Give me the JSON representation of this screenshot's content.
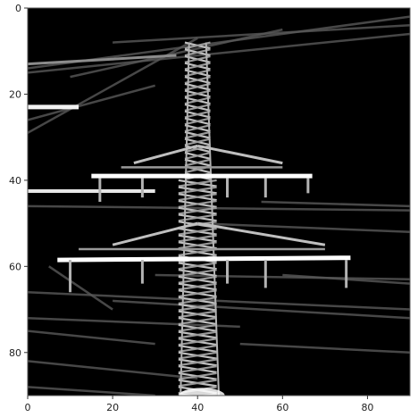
{
  "chart_data": {
    "type": "heatmap",
    "title": "",
    "xlabel": "",
    "ylabel": "",
    "colormap": "gray",
    "xlim": [
      0,
      90
    ],
    "ylim": [
      90,
      0
    ],
    "x_ticks": [
      0,
      20,
      40,
      60,
      80
    ],
    "y_ticks": [
      0,
      20,
      40,
      60,
      80
    ],
    "x_tick_labels": [
      "0",
      "20",
      "40",
      "60",
      "80"
    ],
    "y_tick_labels": [
      "0",
      "20",
      "40",
      "60",
      "80"
    ],
    "grid": false,
    "background_color": "#000000",
    "image_content": "grayscale edge-detected image of a high-voltage power transmission tower with two bright crossarms and diagonal power lines",
    "bright_features": [
      {
        "name": "upper-crossarm",
        "x": [
          15,
          67
        ],
        "y": 39,
        "intensity": 1.0
      },
      {
        "name": "lower-crossarm",
        "x": [
          7,
          76
        ],
        "y": 58,
        "intensity": 1.0
      },
      {
        "name": "left-line-stub-upper",
        "x": [
          0,
          12
        ],
        "y": 23,
        "intensity": 0.9
      },
      {
        "name": "left-line-stub-mid",
        "x": [
          0,
          30
        ],
        "y": 43,
        "intensity": 0.85
      },
      {
        "name": "tower-mast",
        "x": [
          36,
          45
        ],
        "y": [
          8,
          90
        ],
        "intensity": 0.8
      }
    ]
  }
}
